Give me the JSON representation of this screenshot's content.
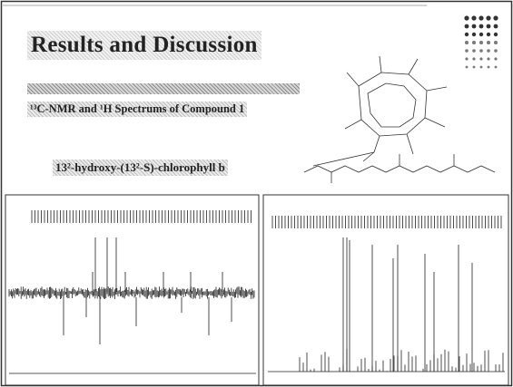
{
  "header": {
    "title": "Results and Discussion",
    "subtitle": "¹³C-NMR and ¹H Spectrums of Compound 1"
  },
  "compound": {
    "name": "13²-hydroxy-(13²-S)-chlorophyll b"
  }
}
